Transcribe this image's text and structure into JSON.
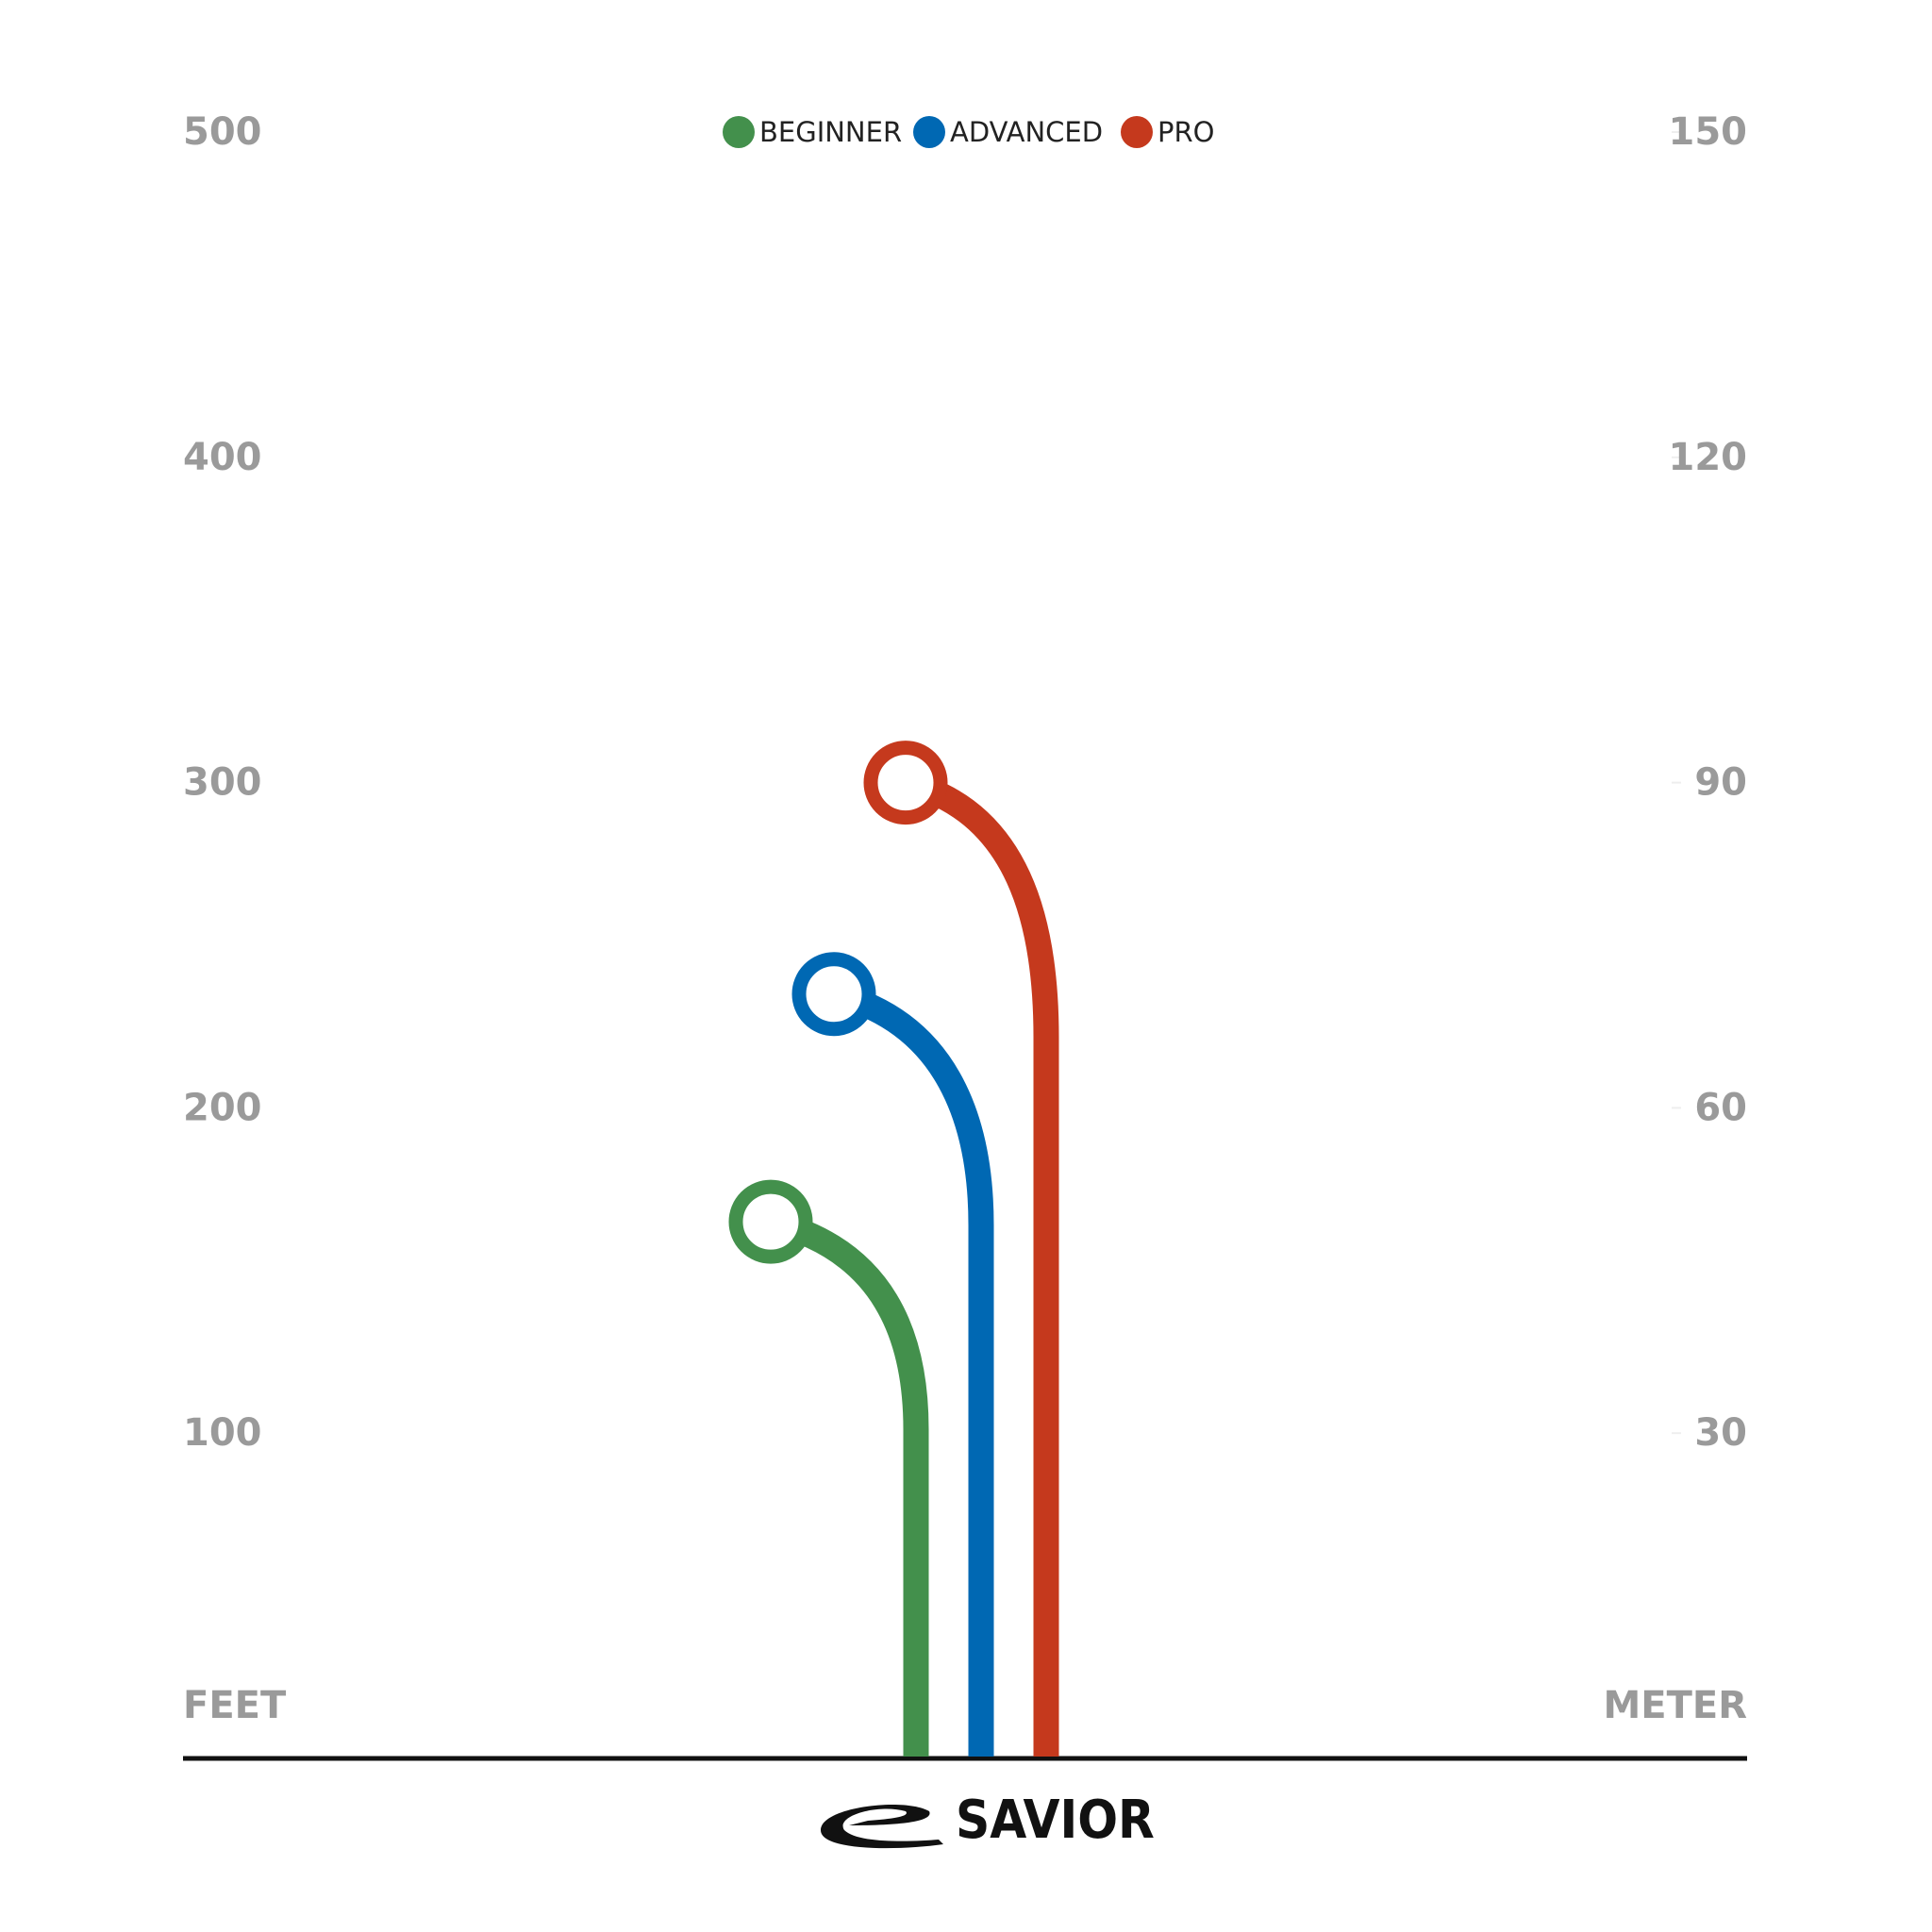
{
  "chart_data": {
    "type": "hook",
    "legend": "top",
    "ylabel": "FEET",
    "y2label": "METER",
    "ylim": [
      0,
      500
    ],
    "yticks": [
      100,
      200,
      300,
      400,
      500
    ],
    "y2lim": [
      0,
      150
    ],
    "y2ticks": [
      30,
      60,
      90,
      120,
      150
    ],
    "series": [
      {
        "name": "BEGINNER",
        "color": "#43904c",
        "value": 165
      },
      {
        "name": "ADVANCED",
        "color": "#0068b3",
        "value": 235
      },
      {
        "name": "PRO",
        "color": "#c5391d",
        "value": 300
      }
    ],
    "brand": "SAVIOR"
  }
}
